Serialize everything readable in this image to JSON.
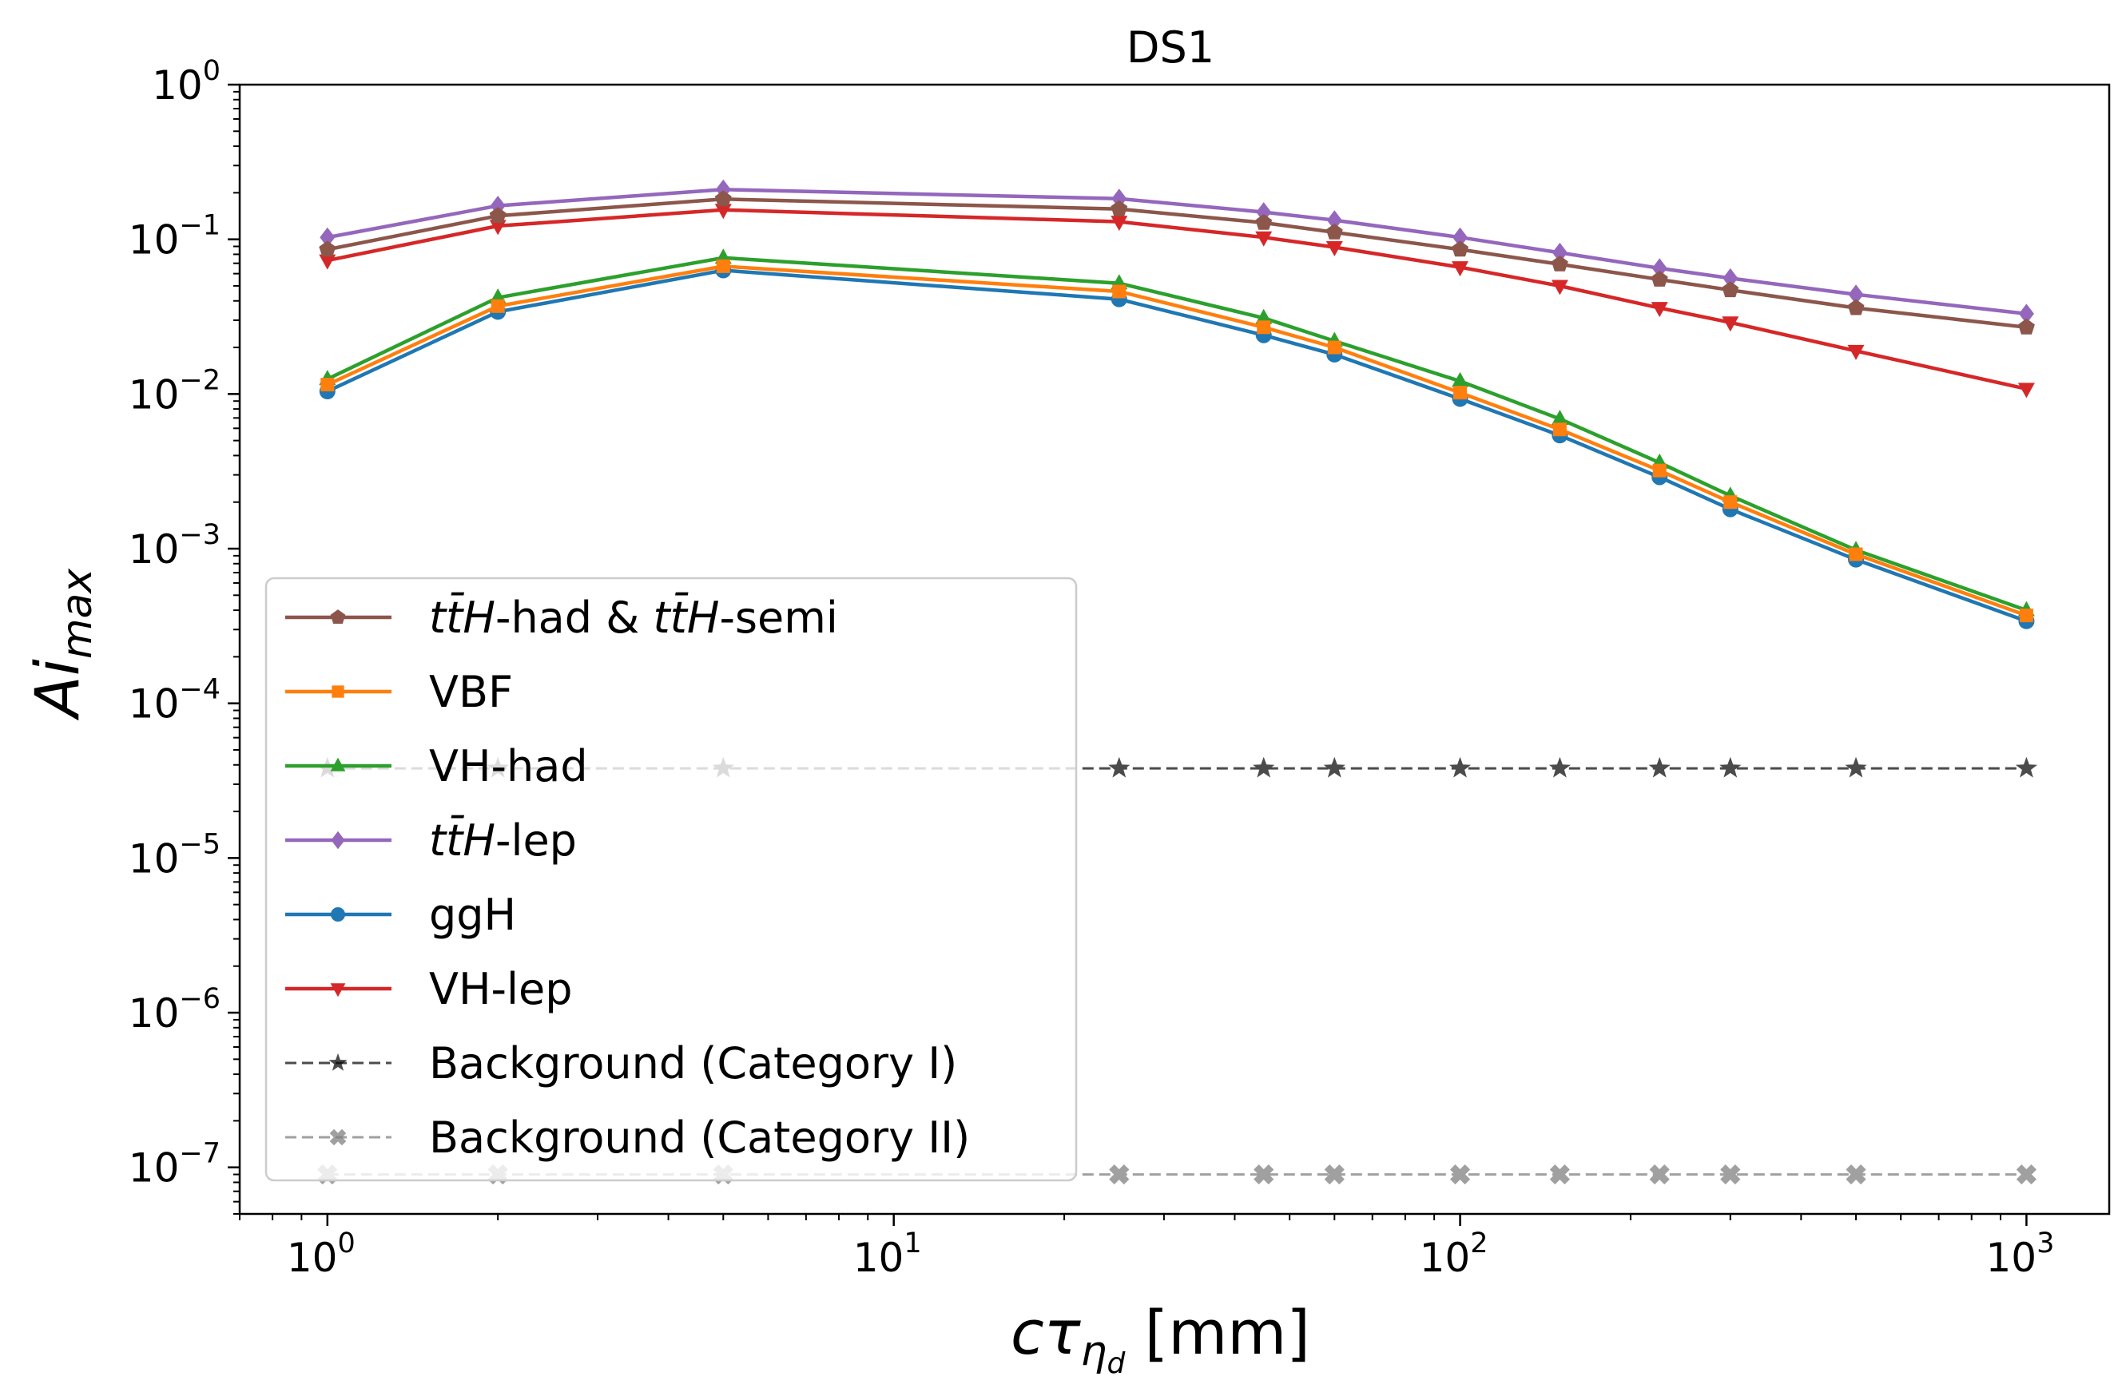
{
  "chart_data": {
    "type": "line",
    "title": "DS1",
    "xlabel": {
      "base": "cτ",
      "sub": "η",
      "subsub": "d",
      "unit": "[mm]"
    },
    "ylabel": {
      "base": "Ai",
      "sub": "max"
    },
    "xscale": "log",
    "yscale": "log",
    "xlim": [
      0.7,
      1400
    ],
    "ylim": [
      5e-08,
      1
    ],
    "x_ticks": [
      {
        "value": 1,
        "base": "10",
        "exp": "0"
      },
      {
        "value": 10,
        "base": "10",
        "exp": "1"
      },
      {
        "value": 100,
        "base": "10",
        "exp": "2"
      },
      {
        "value": 1000,
        "base": "10",
        "exp": "3"
      }
    ],
    "y_ticks": [
      {
        "value": 1e-07,
        "base": "10",
        "exp": "−7"
      },
      {
        "value": 1e-06,
        "base": "10",
        "exp": "−6"
      },
      {
        "value": 1e-05,
        "base": "10",
        "exp": "−5"
      },
      {
        "value": 0.0001,
        "base": "10",
        "exp": "−4"
      },
      {
        "value": 0.001,
        "base": "10",
        "exp": "−3"
      },
      {
        "value": 0.01,
        "base": "10",
        "exp": "−2"
      },
      {
        "value": 0.1,
        "base": "10",
        "exp": "−1"
      },
      {
        "value": 1,
        "base": "10",
        "exp": "0"
      }
    ],
    "grid": false,
    "legend_position": "lower-left",
    "x": [
      1,
      2,
      5,
      25,
      45,
      60,
      100,
      150,
      225,
      300,
      500,
      1000
    ],
    "series": [
      {
        "label_parts": [
          {
            "t": "tt̄H",
            "italic": true
          },
          {
            "t": "-had & ",
            "italic": false
          },
          {
            "t": "tt̄H",
            "italic": true
          },
          {
            "t": "-semi",
            "italic": false
          }
        ],
        "color": "#8c564b",
        "marker": "pentagon",
        "linestyle": "solid",
        "alpha": 1,
        "values": [
          0.086,
          0.142,
          0.182,
          0.157,
          0.128,
          0.111,
          0.086,
          0.069,
          0.055,
          0.047,
          0.036,
          0.027
        ]
      },
      {
        "label_parts": [
          {
            "t": "VBF",
            "italic": false
          }
        ],
        "color": "#ff7f0e",
        "marker": "square",
        "linestyle": "solid",
        "alpha": 1,
        "values": [
          0.0115,
          0.037,
          0.067,
          0.046,
          0.027,
          0.02,
          0.0102,
          0.0059,
          0.0032,
          0.002,
          0.00092,
          0.00037
        ]
      },
      {
        "label_parts": [
          {
            "t": "VH-had",
            "italic": false
          }
        ],
        "color": "#2ca02c",
        "marker": "triangle-up",
        "linestyle": "solid",
        "alpha": 1,
        "values": [
          0.0125,
          0.042,
          0.076,
          0.052,
          0.031,
          0.022,
          0.0121,
          0.0069,
          0.0036,
          0.0022,
          0.00098,
          0.0004
        ]
      },
      {
        "label_parts": [
          {
            "t": "tt̄H",
            "italic": true
          },
          {
            "t": "-lep",
            "italic": false
          }
        ],
        "color": "#9467bd",
        "marker": "diamond",
        "linestyle": "solid",
        "alpha": 1,
        "values": [
          0.103,
          0.165,
          0.21,
          0.183,
          0.15,
          0.133,
          0.103,
          0.082,
          0.065,
          0.056,
          0.044,
          0.033
        ]
      },
      {
        "label_parts": [
          {
            "t": "ggH",
            "italic": false
          }
        ],
        "color": "#1f77b4",
        "marker": "circle",
        "linestyle": "solid",
        "alpha": 1,
        "values": [
          0.0104,
          0.034,
          0.063,
          0.041,
          0.024,
          0.018,
          0.0093,
          0.0054,
          0.0029,
          0.0018,
          0.00085,
          0.00034
        ]
      },
      {
        "label_parts": [
          {
            "t": "VH-lep",
            "italic": false
          }
        ],
        "color": "#d62728",
        "marker": "triangle-down",
        "linestyle": "solid",
        "alpha": 1,
        "values": [
          0.073,
          0.122,
          0.155,
          0.13,
          0.103,
          0.089,
          0.066,
          0.05,
          0.036,
          0.029,
          0.019,
          0.0108
        ]
      },
      {
        "label_parts": [
          {
            "t": "Background (Category I)",
            "italic": false
          }
        ],
        "color": "#000000",
        "marker": "star",
        "linestyle": "dashed",
        "alpha": 0.7,
        "values": [
          3.8e-05,
          3.8e-05,
          3.8e-05,
          3.8e-05,
          3.8e-05,
          3.8e-05,
          3.8e-05,
          3.8e-05,
          3.8e-05,
          3.8e-05,
          3.8e-05,
          3.8e-05
        ]
      },
      {
        "label_parts": [
          {
            "t": "Background (Category II)",
            "italic": false
          }
        ],
        "color": "#808080",
        "marker": "x-filled",
        "linestyle": "dashed",
        "alpha": 0.75,
        "values": [
          9e-08,
          9e-08,
          9e-08,
          9e-08,
          9e-08,
          9e-08,
          9e-08,
          9e-08,
          9e-08,
          9e-08,
          9e-08,
          9e-08
        ]
      }
    ]
  }
}
